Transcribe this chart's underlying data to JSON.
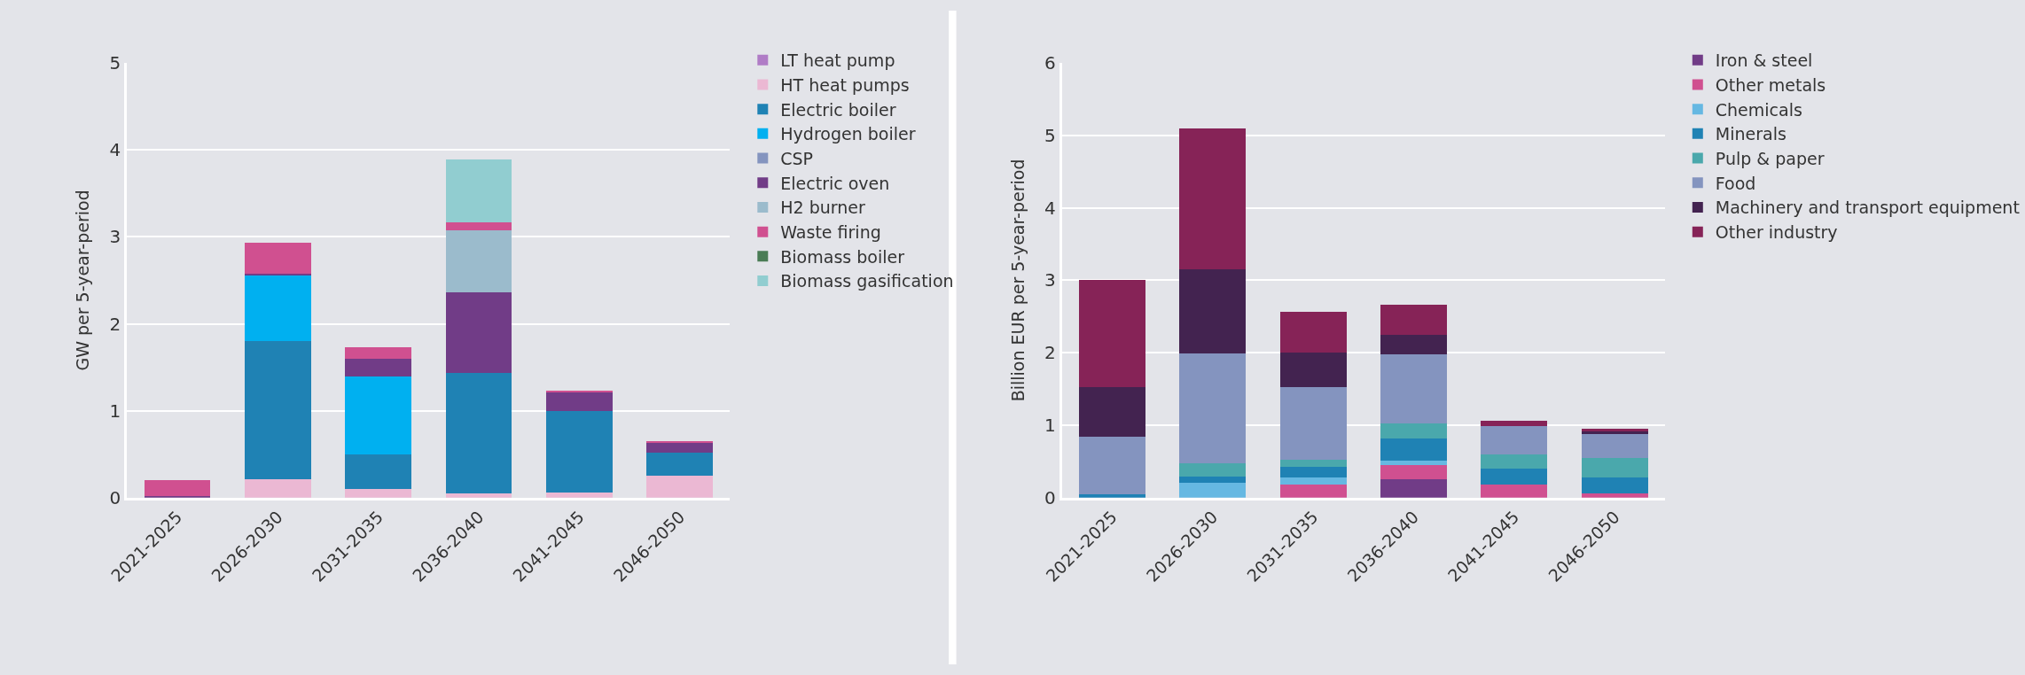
{
  "chart_data": [
    {
      "type": "bar",
      "stacked": true,
      "ylabel": "GW per 5-year-period",
      "categories": [
        "2021-2025",
        "2026-2030",
        "2031-2035",
        "2036-2040",
        "2041-2045",
        "2046-2050"
      ],
      "ylim": [
        0,
        5
      ],
      "yticks": [
        0,
        1,
        2,
        3,
        4,
        5
      ],
      "grid": "y",
      "legend": "right",
      "series": [
        {
          "name": "LT heat pump",
          "color": "#b07cc6",
          "values": [
            0,
            0,
            0,
            0,
            0,
            0
          ]
        },
        {
          "name": "HT heat pumps",
          "color": "#ebb8d3",
          "values": [
            0,
            0.21,
            0.1,
            0.05,
            0.06,
            0.25
          ]
        },
        {
          "name": "Electric boiler",
          "color": "#1f82b4",
          "values": [
            0,
            1.59,
            0.4,
            1.38,
            0.94,
            0.27
          ]
        },
        {
          "name": "Hydrogen boiler",
          "color": "#00b0f0",
          "values": [
            0,
            0.76,
            0.89,
            0,
            0,
            0
          ]
        },
        {
          "name": "CSP",
          "color": "#8494bf",
          "values": [
            0,
            0,
            0,
            0,
            0,
            0
          ]
        },
        {
          "name": "Electric oven",
          "color": "#713c87",
          "values": [
            0.02,
            0.02,
            0.21,
            0.93,
            0.21,
            0.11
          ]
        },
        {
          "name": "H2 burner",
          "color": "#9bbbcc",
          "values": [
            0,
            0,
            0,
            0.71,
            0,
            0
          ]
        },
        {
          "name": "Waste firing",
          "color": "#d05090",
          "values": [
            0.18,
            0.35,
            0.13,
            0.1,
            0.02,
            0.01
          ]
        },
        {
          "name": "Biomass boiler",
          "color": "#4a7c55",
          "values": [
            0,
            0,
            0,
            0,
            0,
            0
          ]
        },
        {
          "name": "Biomass gasification",
          "color": "#91cdd0",
          "values": [
            0,
            0,
            0,
            0.72,
            0,
            0
          ]
        }
      ]
    },
    {
      "type": "bar",
      "stacked": true,
      "ylabel": "Billion EUR per 5-year-period",
      "categories": [
        "2021-2025",
        "2026-2030",
        "2031-2035",
        "2036-2040",
        "2041-2045",
        "2046-2050"
      ],
      "ylim": [
        0,
        6
      ],
      "yticks": [
        0,
        1,
        2,
        3,
        4,
        5,
        6
      ],
      "grid": "y",
      "legend": "right",
      "series": [
        {
          "name": "Iron & steel",
          "color": "#713c87",
          "values": [
            0,
            0,
            0,
            0.25,
            0,
            0
          ]
        },
        {
          "name": "Other metals",
          "color": "#d05090",
          "values": [
            0,
            0,
            0.18,
            0.2,
            0.18,
            0.06
          ]
        },
        {
          "name": "Chemicals",
          "color": "#66b8e2",
          "values": [
            0,
            0.21,
            0.1,
            0.06,
            0,
            0
          ]
        },
        {
          "name": "Minerals",
          "color": "#1f82b4",
          "values": [
            0.05,
            0.08,
            0.15,
            0.31,
            0.22,
            0.22
          ]
        },
        {
          "name": "Pulp & paper",
          "color": "#4aa8ac",
          "values": [
            0,
            0.19,
            0.09,
            0.2,
            0.2,
            0.27
          ]
        },
        {
          "name": "Food",
          "color": "#8494bf",
          "values": [
            0.79,
            1.51,
            1.0,
            0.96,
            0.39,
            0.33
          ]
        },
        {
          "name": "Machinery and transport equipment",
          "color": "#432350",
          "values": [
            0.69,
            1.16,
            0.48,
            0.27,
            0,
            0.04
          ]
        },
        {
          "name": "Other industry",
          "color": "#862357",
          "values": [
            1.47,
            1.94,
            0.56,
            0.41,
            0.07,
            0.03
          ]
        }
      ]
    }
  ]
}
